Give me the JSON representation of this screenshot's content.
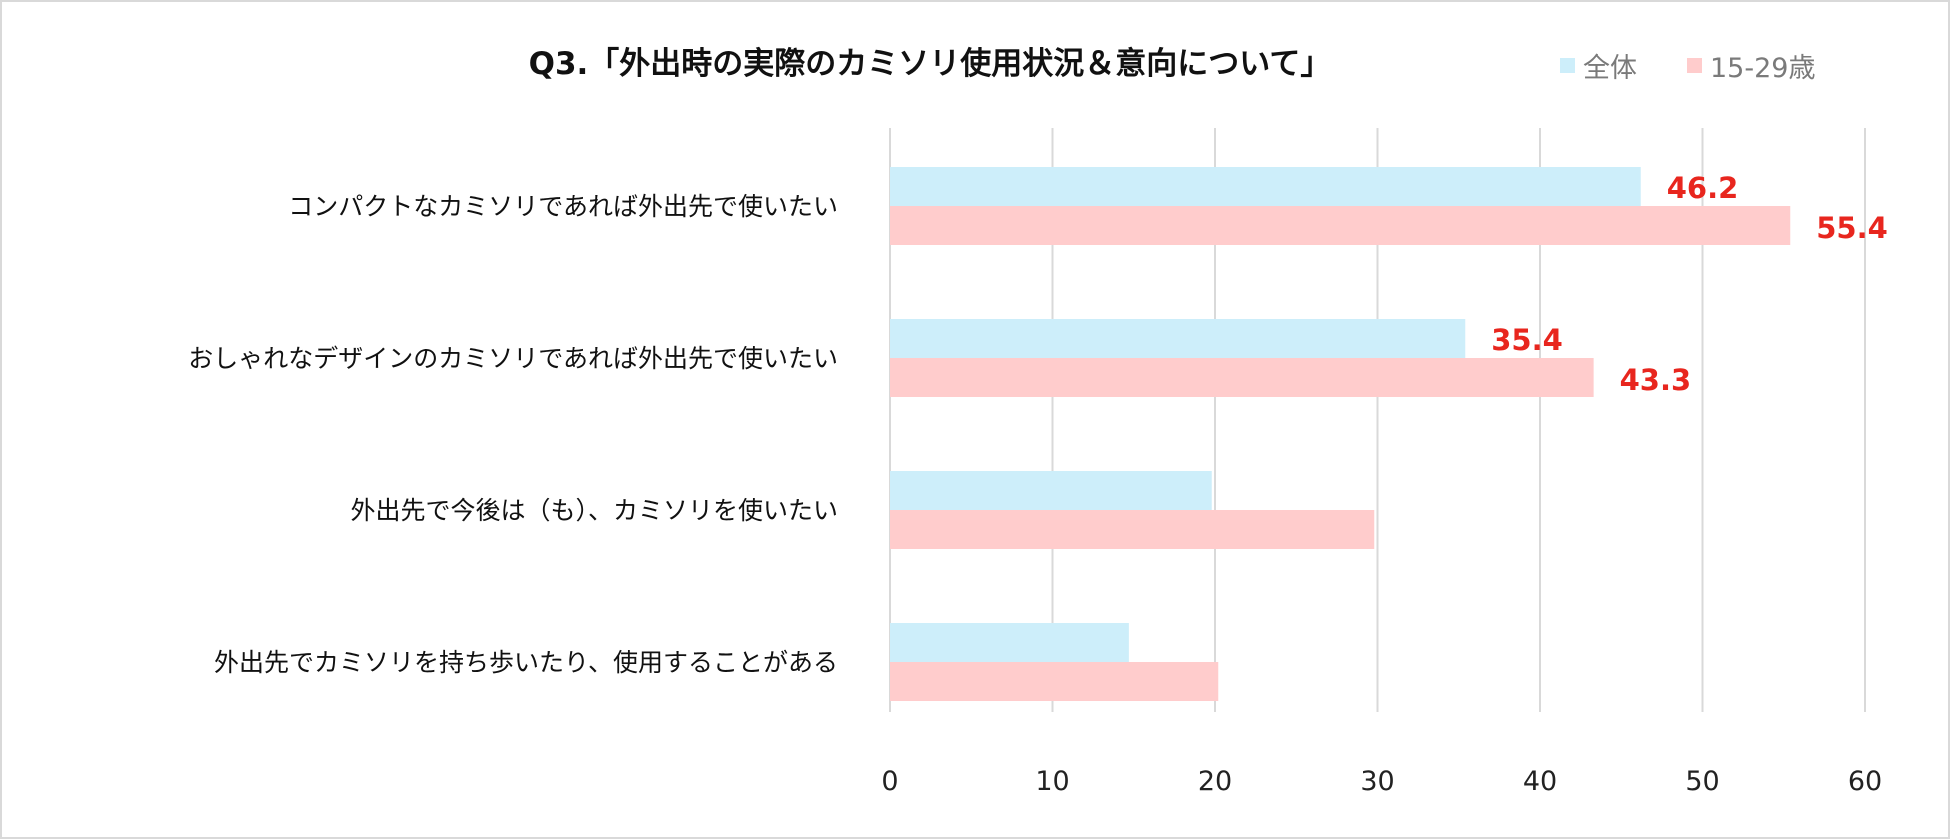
{
  "chart_data": {
    "type": "bar",
    "orientation": "horizontal",
    "title": "Q3.「外出時の実際のカミソリ使用状況＆意向について」",
    "categories": [
      "コンパクトなカミソリであれば外出先で使いたい",
      "おしゃれなデザインのカミソリであれば外出先で使いたい",
      "外出先で今後は（も）、カミソリを使いたい",
      "外出先でカミソリを持ち歩いたり、使用することがある"
    ],
    "series": [
      {
        "name": "全体",
        "color": "#cdeefa",
        "values": [
          46.2,
          35.4,
          19.8,
          14.7
        ]
      },
      {
        "name": "15-29歳",
        "color": "#ffcccc",
        "values": [
          55.4,
          43.3,
          29.8,
          20.2
        ]
      }
    ],
    "data_labels": [
      {
        "category": 0,
        "series": 0,
        "text": "46.2"
      },
      {
        "category": 0,
        "series": 1,
        "text": "55.4"
      },
      {
        "category": 1,
        "series": 0,
        "text": "35.4"
      },
      {
        "category": 1,
        "series": 1,
        "text": "43.3"
      }
    ],
    "xlim": [
      0,
      60
    ],
    "xticks": [
      0,
      10,
      20,
      30,
      40,
      50,
      60
    ],
    "grid": true,
    "legend_position": "top-right",
    "label_color": "#e8261e",
    "grid_color": "#d9d9d9"
  }
}
